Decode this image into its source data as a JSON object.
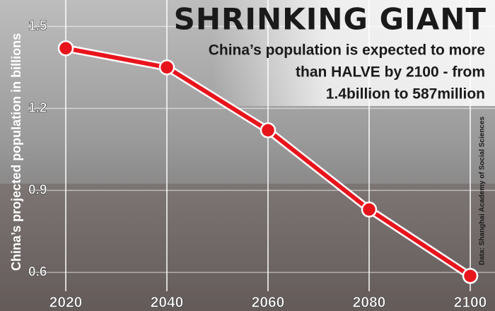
{
  "chart_data": {
    "type": "line",
    "title": "SHRINKING GIANT",
    "subtitle": [
      "China’s population is expected to more",
      "than HALVE by 2100 - from",
      "1.4billion to 587million"
    ],
    "y_label": "China’s projected population in billions",
    "source": "Data: Shanghai Academy of Social Sciences",
    "x": [
      2020,
      2040,
      2060,
      2080,
      2100
    ],
    "series": [
      {
        "name": "Population",
        "color": "#e8141c",
        "values": [
          1.42,
          1.35,
          1.12,
          0.83,
          0.587
        ]
      }
    ],
    "xlim": [
      2020,
      2100
    ],
    "xticks": [
      2020,
      2040,
      2060,
      2080,
      2100
    ],
    "ylim": [
      0.5,
      1.55
    ],
    "yticks": [
      0.6,
      0.9,
      1.2,
      1.5
    ],
    "grid": true
  }
}
